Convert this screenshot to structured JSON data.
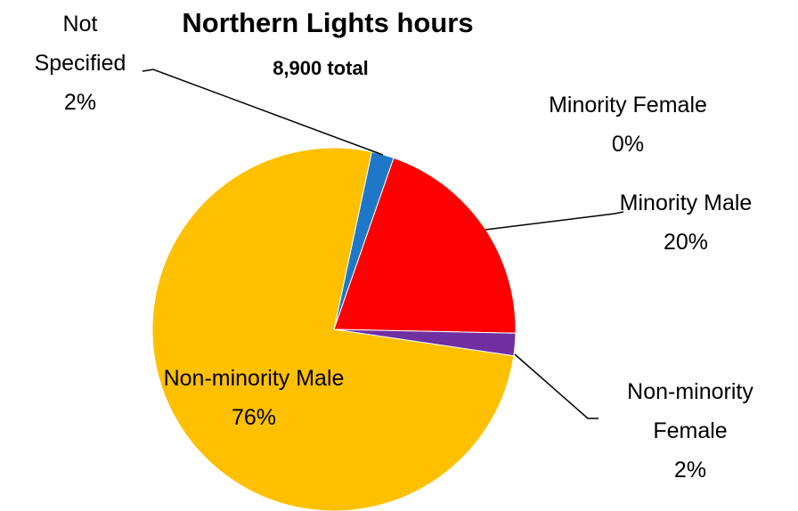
{
  "chart_data": {
    "type": "pie",
    "title": "Northern Lights hours",
    "subtitle": "8,900 total",
    "categories": [
      "Not Specified",
      "Minority Female",
      "Minority Male",
      "Non-minority Female",
      "Non-minority Male"
    ],
    "values": [
      2,
      0,
      20,
      2,
      76
    ],
    "value_labels": [
      "2%",
      "0%",
      "20%",
      "2%",
      "76%"
    ],
    "colors": [
      "#1f77c8",
      "#4472c4",
      "#ff0000",
      "#7030a0",
      "#ffc000"
    ]
  }
}
